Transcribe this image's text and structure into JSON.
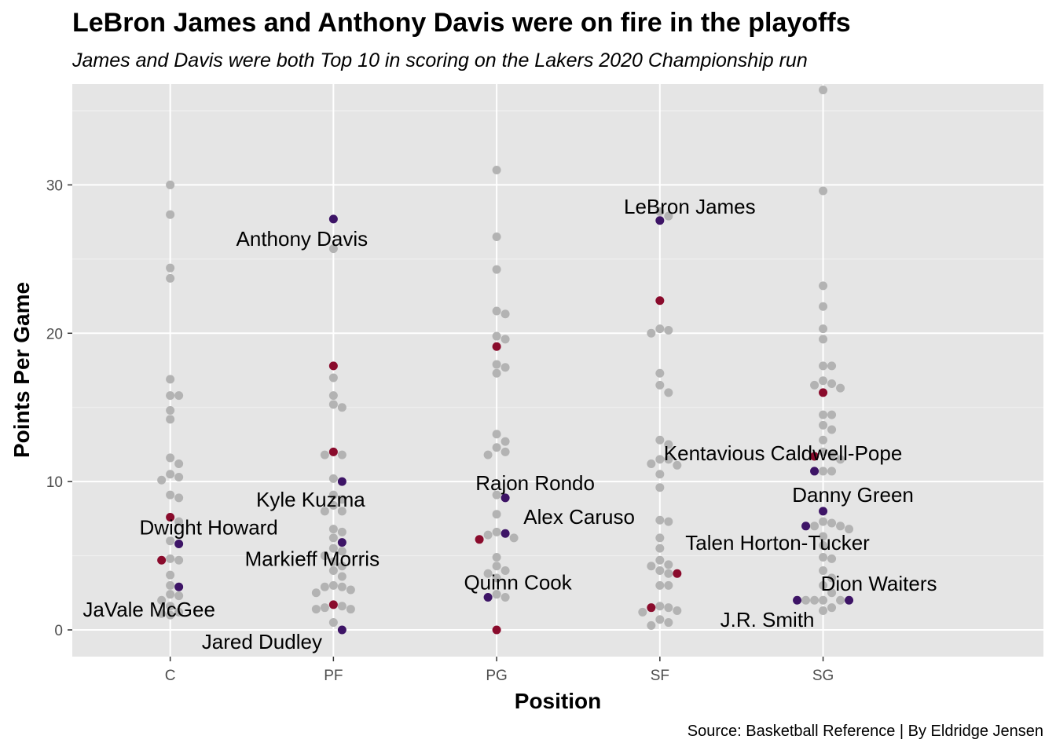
{
  "chart_data": {
    "type": "scatter",
    "title": "LeBron James and Anthony Davis were on fire in the playoffs",
    "subtitle": "James and Davis were both Top 10 in scoring on the Lakers 2020 Championship run",
    "caption": "Source: Basketball Reference | By Eldridge Jensen",
    "xlabel": "Position",
    "ylabel": "Points Per Game",
    "categories": [
      "C",
      "PF",
      "PG",
      "SF",
      "SG"
    ],
    "ylim": [
      -1.8,
      36.8
    ],
    "yticks": [
      0,
      10,
      20,
      30
    ],
    "grid": true,
    "colors": {
      "panel": "#e5e5e5",
      "grid": "#ffffff",
      "other_players": "#b3b3b3",
      "lakers_purple": "#3d1466",
      "lakers_red": "#8a0b2c"
    },
    "other_players": [
      {
        "pos": "C",
        "ppg": [
          30.0,
          28.0,
          24.4,
          23.7,
          16.9,
          15.8,
          15.8,
          14.8,
          14.2,
          11.6,
          11.2,
          10.5,
          10.3,
          10.1,
          9.1,
          8.9,
          7.3,
          6.0,
          4.8,
          4.7,
          3.7,
          3.0,
          2.4,
          2.3,
          2.0,
          1.6,
          1.2,
          1.1,
          1.0
        ]
      },
      {
        "pos": "PF",
        "ppg": [
          25.7,
          17.0,
          15.8,
          15.2,
          15.0,
          11.8,
          11.8,
          10.2,
          9.1,
          8.8,
          8.4,
          8.0,
          8.0,
          6.8,
          6.6,
          6.2,
          5.5,
          5.3,
          5.0,
          4.6,
          4.3,
          4.0,
          3.6,
          3.0,
          2.9,
          2.9,
          2.7,
          2.5,
          1.6,
          1.5,
          1.4,
          1.4,
          0.5
        ]
      },
      {
        "pos": "PG",
        "ppg": [
          31.0,
          26.5,
          24.3,
          21.5,
          21.3,
          19.8,
          19.6,
          17.9,
          17.7,
          17.3,
          13.2,
          12.7,
          12.3,
          12.0,
          11.8,
          9.1,
          7.8,
          6.6,
          6.4,
          6.2,
          4.9,
          4.3,
          4.0,
          3.8,
          3.5,
          2.4,
          2.2
        ]
      },
      {
        "pos": "SF",
        "ppg": [
          28.2,
          27.9,
          20.3,
          20.2,
          20.0,
          17.3,
          16.5,
          16.0,
          12.8,
          12.5,
          11.5,
          11.5,
          11.2,
          11.1,
          10.5,
          9.6,
          7.4,
          7.3,
          6.2,
          5.5,
          4.7,
          4.4,
          4.3,
          4.0,
          3.8,
          3.0,
          3.0,
          1.6,
          1.5,
          1.3,
          1.2,
          0.7,
          0.5,
          0.3
        ]
      },
      {
        "pos": "SG",
        "ppg": [
          36.4,
          29.6,
          23.2,
          21.8,
          20.3,
          19.6,
          17.8,
          17.8,
          16.8,
          16.6,
          16.5,
          16.3,
          14.5,
          14.5,
          13.8,
          13.5,
          12.8,
          12.0,
          11.8,
          11.5,
          10.7,
          10.7,
          7.3,
          7.2,
          7.0,
          7.0,
          6.8,
          6.3,
          5.7,
          4.9,
          4.8,
          4.0,
          3.5,
          3.0,
          2.5,
          2.0,
          2.0,
          2.0,
          2.0,
          1.5,
          1.3
        ]
      }
    ],
    "lakers": [
      {
        "name": "Anthony Davis",
        "pos": "PF",
        "ppg": 27.7,
        "color": "purple",
        "labeled": true
      },
      {
        "name": "LeBron James",
        "pos": "SF",
        "ppg": 27.6,
        "color": "purple",
        "labeled": true
      },
      {
        "name": "Kentavious Caldwell-Pope",
        "pos": "SG",
        "ppg": 10.7,
        "color": "purple",
        "labeled": true
      },
      {
        "name": "Rajon Rondo",
        "pos": "PG",
        "ppg": 8.9,
        "color": "purple",
        "labeled": true
      },
      {
        "name": "Kyle Kuzma",
        "pos": "PF",
        "ppg": 10.0,
        "color": "purple",
        "labeled": true
      },
      {
        "name": "Danny Green",
        "pos": "SG",
        "ppg": 8.0,
        "color": "purple",
        "labeled": true
      },
      {
        "name": "Alex Caruso",
        "pos": "PG",
        "ppg": 6.5,
        "color": "purple",
        "labeled": true
      },
      {
        "name": "Talen Horton-Tucker",
        "pos": "SG",
        "ppg": 7.0,
        "color": "purple",
        "labeled": true
      },
      {
        "name": "Dwight Howard",
        "pos": "C",
        "ppg": 5.8,
        "color": "purple",
        "labeled": true
      },
      {
        "name": "Markieff Morris",
        "pos": "PF",
        "ppg": 5.9,
        "color": "purple",
        "labeled": true
      },
      {
        "name": "Quinn Cook",
        "pos": "PG",
        "ppg": 2.2,
        "color": "purple",
        "labeled": true
      },
      {
        "name": "Dion Waiters",
        "pos": "SG",
        "ppg": 2.0,
        "color": "purple",
        "labeled": true
      },
      {
        "name": "J.R. Smith",
        "pos": "SG",
        "ppg": 2.0,
        "color": "purple",
        "labeled": true
      },
      {
        "name": "JaVale McGee",
        "pos": "C",
        "ppg": 2.9,
        "color": "purple",
        "labeled": true
      },
      {
        "name": "Jared Dudley",
        "pos": "PF",
        "ppg": 0.0,
        "color": "purple",
        "labeled": true
      },
      {
        "name": "",
        "pos": "SF",
        "ppg": 22.2,
        "color": "red",
        "labeled": false
      },
      {
        "name": "",
        "pos": "SF",
        "ppg": 3.8,
        "color": "red",
        "labeled": false
      },
      {
        "name": "",
        "pos": "SF",
        "ppg": 1.5,
        "color": "red",
        "labeled": false
      },
      {
        "name": "",
        "pos": "PG",
        "ppg": 19.1,
        "color": "red",
        "labeled": false
      },
      {
        "name": "",
        "pos": "PG",
        "ppg": 6.1,
        "color": "red",
        "labeled": false
      },
      {
        "name": "",
        "pos": "PG",
        "ppg": 0.0,
        "color": "red",
        "labeled": false
      },
      {
        "name": "",
        "pos": "PF",
        "ppg": 17.8,
        "color": "red",
        "labeled": false
      },
      {
        "name": "",
        "pos": "PF",
        "ppg": 12.0,
        "color": "red",
        "labeled": false
      },
      {
        "name": "",
        "pos": "PF",
        "ppg": 1.7,
        "color": "red",
        "labeled": false
      },
      {
        "name": "",
        "pos": "SG",
        "ppg": 16.0,
        "color": "red",
        "labeled": false
      },
      {
        "name": "",
        "pos": "SG",
        "ppg": 11.7,
        "color": "red",
        "labeled": false
      },
      {
        "name": "",
        "pos": "C",
        "ppg": 7.6,
        "color": "red",
        "labeled": false
      },
      {
        "name": "",
        "pos": "C",
        "ppg": 4.7,
        "color": "red",
        "labeled": false
      }
    ]
  }
}
